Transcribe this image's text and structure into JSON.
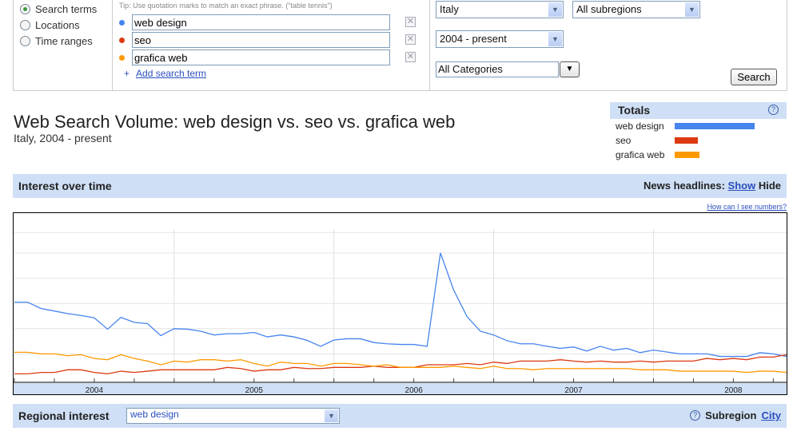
{
  "search_panel": {
    "options": [
      {
        "label": "Search terms",
        "selected": true
      },
      {
        "label": "Locations",
        "selected": false
      },
      {
        "label": "Time ranges",
        "selected": false
      }
    ],
    "tip": "Tip: Use quotation marks to match an exact phrase. (\"table tennis\")",
    "terms": [
      {
        "value": "web design",
        "color": "#4684ee"
      },
      {
        "value": "seo",
        "color": "#dc3912"
      },
      {
        "value": "grafica web",
        "color": "#ff9900"
      }
    ],
    "add_term_label": "Add search term",
    "add_plus": "+",
    "remove_glyph": "✕",
    "location": "Italy",
    "subregion": "All subregions",
    "time_range": "2004 - present",
    "category": "All Categories",
    "search_button": "Search"
  },
  "header": {
    "title": "Web Search Volume: web design vs. seo vs. grafica web",
    "subtitle": "Italy, 2004 - present"
  },
  "totals": {
    "title": "Totals",
    "help": "?",
    "items": [
      {
        "label": "web design",
        "value": 100,
        "color": "#4684ee"
      },
      {
        "label": "seo",
        "value": 29,
        "color": "#dc3912"
      },
      {
        "label": "grafica web",
        "value": 31,
        "color": "#ff9900"
      }
    ]
  },
  "interest": {
    "title": "Interest over time",
    "news_label": "News headlines:",
    "news_show": "Show",
    "news_hide": "Hide",
    "how_numbers": "How can I see numbers?"
  },
  "chart_data": {
    "type": "line",
    "x_start": "2004-01",
    "x_step": "month",
    "xtick_labels": [
      "2004",
      "2005",
      "2006",
      "2007",
      "2008"
    ],
    "ylim": [
      0,
      116
    ],
    "grid": true,
    "series": [
      {
        "name": "web design",
        "color": "#4684ee",
        "values": [
          61,
          61,
          56,
          54,
          52,
          50.5,
          48.6,
          39.6,
          49,
          45,
          44,
          34.5,
          40,
          39.6,
          38,
          35,
          36,
          36,
          37,
          33.5,
          35,
          33.5,
          30.7,
          26,
          31,
          32,
          32,
          29,
          28,
          27.5,
          27.5,
          26,
          100,
          70.5,
          49.5,
          38,
          35,
          30.5,
          28,
          28,
          26,
          24.4,
          25.5,
          22.3,
          26,
          23,
          24.4,
          21,
          23,
          21.5,
          20,
          20,
          20,
          18,
          18,
          18,
          21,
          20,
          18
        ]
      },
      {
        "name": "seo",
        "color": "#dc3912",
        "values": [
          4.2,
          4.2,
          5.3,
          5.3,
          7.4,
          7.4,
          5.3,
          4.2,
          6.3,
          5.3,
          6.3,
          7.4,
          7.4,
          7.4,
          7.4,
          7.4,
          9.3,
          8.4,
          6.3,
          7.4,
          7.4,
          9.3,
          8.4,
          8.4,
          9.3,
          9.3,
          9.3,
          10.3,
          9.3,
          9.3,
          9.3,
          11.4,
          11.4,
          11.4,
          12.4,
          11.4,
          13.5,
          12.4,
          14.3,
          14.3,
          14.3,
          15.4,
          14.3,
          13.5,
          14.3,
          13.5,
          13.5,
          14.3,
          13.5,
          14.3,
          14.3,
          14.3,
          16.4,
          15.4,
          16.4,
          15.4,
          17.5,
          17.5,
          19.4
        ]
      },
      {
        "name": "grafica web",
        "color": "#ff9900",
        "values": [
          21.3,
          21.3,
          20,
          20,
          18.5,
          19.4,
          16.4,
          15.4,
          19.4,
          16.4,
          14.3,
          11.4,
          14.3,
          13.5,
          15.4,
          15.4,
          14.3,
          15.4,
          12.4,
          10.3,
          13.5,
          12.4,
          12.4,
          10.3,
          12.4,
          12.4,
          11.4,
          10.3,
          11.4,
          9.3,
          9.3,
          9.3,
          9.3,
          10.3,
          9.3,
          8.4,
          10.3,
          8.4,
          8.4,
          7.4,
          8.4,
          8.4,
          8.4,
          8.4,
          8.4,
          8.4,
          8.4,
          7.4,
          7.4,
          7.4,
          6.3,
          6.3,
          6.3,
          6.3,
          6.3,
          5.3,
          6.3,
          6.3,
          5.3
        ]
      }
    ]
  },
  "regional": {
    "title": "Regional interest",
    "selected_term": "web design",
    "help": "?",
    "subregion_label": "Subregion",
    "city_link": "City"
  }
}
